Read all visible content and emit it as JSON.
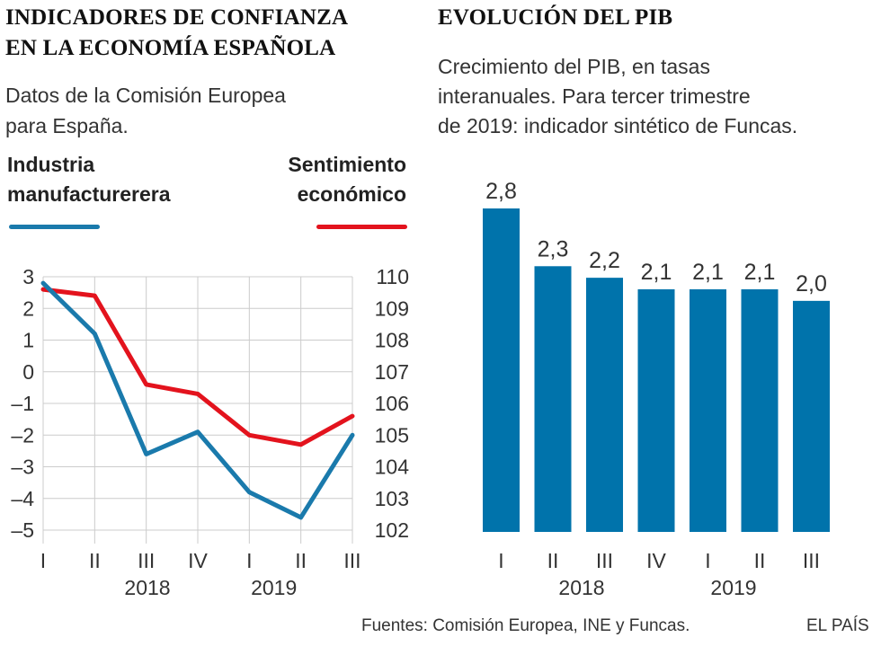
{
  "left": {
    "title_line1": "INDICADORES DE CONFIANZA",
    "title_line2": "EN LA ECONOMÍA ESPAÑOLA",
    "subtitle_line1": "Datos de la Comisión Europea",
    "subtitle_line2": "para España.",
    "legend_left_line1": "Industria",
    "legend_left_line2": "manufacturerera",
    "legend_right_line1": "Sentimiento",
    "legend_right_line2": "económico"
  },
  "right": {
    "title": "EVOLUCIÓN DEL PIB",
    "subtitle_line1": "Crecimiento del PIB, en tasas",
    "subtitle_line2": "interanuales. Para tercer trimestre",
    "subtitle_line3": "de 2019: indicador sintético de Funcas."
  },
  "footer": {
    "sources": "Fuentes: Comisión Europea, INE y Funcas.",
    "brand": "EL PAÍS"
  },
  "colors": {
    "blue": "#1a7aac",
    "red": "#e3131d",
    "bar": "#0073ab",
    "grid": "#cccccc"
  },
  "chart_data": [
    {
      "type": "line",
      "title": "INDICADORES DE CONFIANZA EN LA ECONOMÍA ESPAÑOLA",
      "x": [
        "I",
        "II",
        "III",
        "IV",
        "I",
        "II",
        "III"
      ],
      "year_labels": [
        "2018",
        "2019"
      ],
      "series": [
        {
          "name": "Industria manufacturerera",
          "axis": "left",
          "color": "#1a7aac",
          "values": [
            2.8,
            1.2,
            -2.6,
            -1.9,
            -3.8,
            -4.6,
            -2.0
          ]
        },
        {
          "name": "Sentimiento económico",
          "axis": "right",
          "color": "#e3131d",
          "values": [
            109.6,
            109.4,
            106.6,
            106.3,
            105.0,
            104.7,
            105.6
          ]
        }
      ],
      "left_axis": {
        "ylim": [
          -5,
          3
        ],
        "ticks": [
          "3",
          "2",
          "1",
          "0",
          "–1",
          "–2",
          "–3",
          "–4",
          "–5"
        ],
        "tick_values": [
          3,
          2,
          1,
          0,
          -1,
          -2,
          -3,
          -4,
          -5
        ]
      },
      "right_axis": {
        "ylim": [
          102,
          110
        ],
        "ticks": [
          "110",
          "109",
          "108",
          "107",
          "106",
          "105",
          "104",
          "103",
          "102"
        ],
        "tick_values": [
          110,
          109,
          108,
          107,
          106,
          105,
          104,
          103,
          102
        ]
      },
      "grid": true
    },
    {
      "type": "bar",
      "title": "EVOLUCIÓN DEL PIB",
      "categories": [
        "I",
        "II",
        "III",
        "IV",
        "I",
        "II",
        "III"
      ],
      "year_labels": [
        "2018",
        "2019"
      ],
      "values": [
        2.8,
        2.3,
        2.2,
        2.1,
        2.1,
        2.1,
        2.0
      ],
      "value_labels": [
        "2,8",
        "2,3",
        "2,2",
        "2,1",
        "2,1",
        "2,1",
        "2,0"
      ],
      "color": "#0073ab"
    }
  ]
}
